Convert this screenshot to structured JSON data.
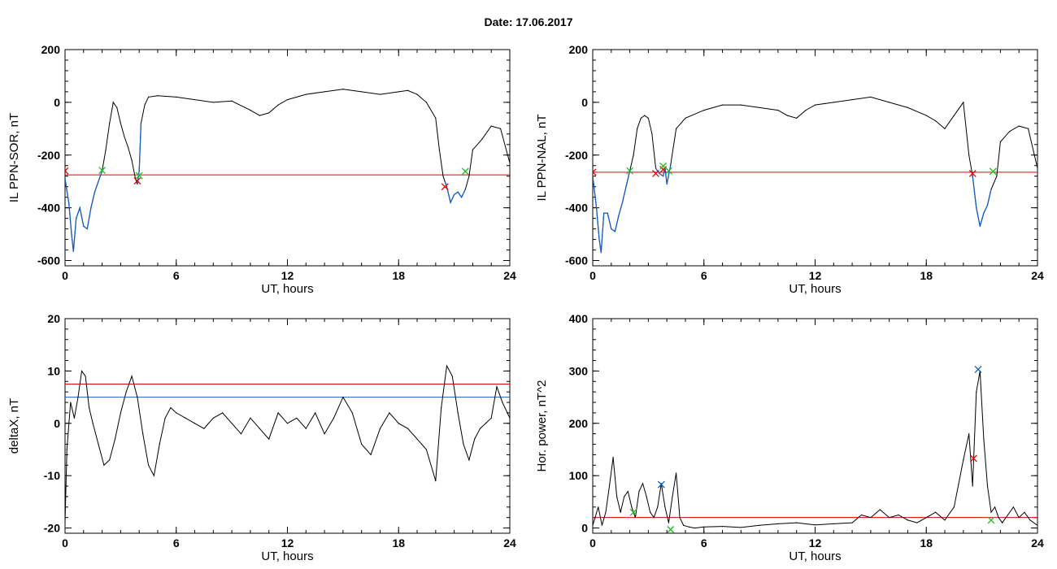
{
  "figure": {
    "title": "Date:  17.06.2017"
  },
  "colors": {
    "series": "#000000",
    "threshold": "#e00000",
    "blue": "#1560bd",
    "green": "#22bb22",
    "red_marker": "#e00000"
  },
  "chart_data": [
    {
      "type": "line",
      "xlabel": "UT, hours",
      "ylabel": "IL PPN-SOR, nT",
      "xlim": [
        0,
        24
      ],
      "ylim": [
        -620,
        200
      ],
      "xticks": [
        "0",
        "6",
        "12",
        "18",
        "24"
      ],
      "yticks": [
        "200",
        "0",
        "-200",
        "-400",
        "-600"
      ],
      "ytick_values": [
        200,
        0,
        -200,
        -400,
        -600
      ],
      "series": [
        {
          "x": [
            0,
            0.2,
            0.35,
            0.45,
            0.6,
            0.8,
            1.0,
            1.2,
            1.4,
            1.6,
            1.8,
            2.0,
            2.2,
            2.4,
            2.6,
            2.8,
            3.0,
            3.2,
            3.4,
            3.6,
            3.8,
            3.9,
            4.0,
            4.1,
            4.3,
            4.5,
            5,
            6,
            7,
            8,
            9,
            10,
            10.5,
            11,
            11.5,
            12,
            13,
            14,
            15,
            16,
            17,
            18,
            18.5,
            19,
            19.5,
            20,
            20.2,
            20.4,
            20.5,
            20.6,
            20.8,
            21.0,
            21.2,
            21.4,
            21.6,
            21.8,
            22,
            22.5,
            23,
            23.5,
            24
          ],
          "values": [
            -290,
            -380,
            -500,
            -565,
            -440,
            -400,
            -470,
            -480,
            -400,
            -340,
            -300,
            -260,
            -180,
            -80,
            0,
            -20,
            -80,
            -130,
            -170,
            -220,
            -290,
            -310,
            -260,
            -80,
            -10,
            20,
            25,
            20,
            10,
            0,
            5,
            -30,
            -50,
            -40,
            -10,
            10,
            30,
            40,
            50,
            40,
            30,
            40,
            45,
            30,
            0,
            -60,
            -180,
            -280,
            -300,
            -320,
            -380,
            -350,
            -340,
            -360,
            -330,
            -280,
            -180,
            -140,
            -90,
            -100,
            -230
          ],
          "highlight_x_ranges": [
            [
              0,
              2.1
            ],
            [
              3.9,
              4.15
            ],
            [
              20.5,
              21.6
            ]
          ]
        }
      ],
      "threshold": -275,
      "markers_red": [
        {
          "x": 0,
          "y": -260
        },
        {
          "x": 3.9,
          "y": -298
        },
        {
          "x": 20.5,
          "y": -320
        }
      ],
      "markers_green": [
        {
          "x": 2.0,
          "y": -258
        },
        {
          "x": 4.0,
          "y": -278
        },
        {
          "x": 21.6,
          "y": -262
        }
      ]
    },
    {
      "type": "line",
      "xlabel": "UT, hours",
      "ylabel": "IL PPN-NAL, nT",
      "xlim": [
        0,
        24
      ],
      "ylim": [
        -620,
        200
      ],
      "xticks": [
        "0",
        "6",
        "12",
        "18",
        "24"
      ],
      "yticks": [
        "200",
        "0",
        "-200",
        "-400",
        "-600"
      ],
      "ytick_values": [
        200,
        0,
        -200,
        -400,
        -600
      ],
      "series": [
        {
          "x": [
            0,
            0.2,
            0.35,
            0.45,
            0.6,
            0.8,
            1.0,
            1.2,
            1.4,
            1.6,
            1.8,
            2.0,
            2.2,
            2.4,
            2.6,
            2.8,
            3.0,
            3.2,
            3.4,
            3.6,
            3.8,
            3.9,
            4.0,
            4.2,
            4.5,
            5,
            6,
            7,
            8,
            9,
            10,
            10.5,
            11,
            11.5,
            12,
            13,
            14,
            15,
            16,
            17,
            18,
            18.5,
            19,
            19.5,
            20,
            20.3,
            20.5,
            20.7,
            20.9,
            21.1,
            21.3,
            21.5,
            21.8,
            22,
            22.5,
            23,
            23.5,
            24
          ],
          "values": [
            -280,
            -400,
            -520,
            -570,
            -420,
            -420,
            -480,
            -490,
            -430,
            -380,
            -320,
            -260,
            -200,
            -100,
            -60,
            -50,
            -60,
            -120,
            -250,
            -270,
            -280,
            -250,
            -310,
            -240,
            -100,
            -60,
            -30,
            -10,
            -10,
            -20,
            -30,
            -50,
            -60,
            -30,
            -10,
            0,
            10,
            20,
            0,
            -20,
            -50,
            -70,
            -100,
            -50,
            0,
            -200,
            -280,
            -400,
            -470,
            -420,
            -390,
            -330,
            -280,
            -150,
            -110,
            -90,
            -100,
            -250
          ],
          "highlight_x_ranges": [
            [
              0,
              2.1
            ],
            [
              3.3,
              4.2
            ],
            [
              20.5,
              21.6
            ]
          ]
        }
      ],
      "threshold": -265,
      "markers_red": [
        {
          "x": 0,
          "y": -265
        },
        {
          "x": 3.4,
          "y": -270
        },
        {
          "x": 3.8,
          "y": -255
        },
        {
          "x": 20.5,
          "y": -270
        }
      ],
      "markers_green": [
        {
          "x": 2.0,
          "y": -260
        },
        {
          "x": 3.8,
          "y": -242
        },
        {
          "x": 4.1,
          "y": -260
        },
        {
          "x": 21.6,
          "y": -262
        }
      ]
    },
    {
      "type": "line",
      "xlabel": "UT, hours",
      "ylabel": "deltaX, nT",
      "xlim": [
        0,
        24
      ],
      "ylim": [
        -21,
        20
      ],
      "xticks": [
        "0",
        "6",
        "12",
        "18",
        "24"
      ],
      "yticks": [
        "20",
        "10",
        "0",
        "-10",
        "-20"
      ],
      "ytick_values": [
        20,
        10,
        0,
        -10,
        -20
      ],
      "series": [
        {
          "x": [
            0,
            0.1,
            0.3,
            0.5,
            0.7,
            0.9,
            1.1,
            1.3,
            1.5,
            1.8,
            2.1,
            2.4,
            2.7,
            3.0,
            3.3,
            3.6,
            3.9,
            4.2,
            4.5,
            4.8,
            5.1,
            5.4,
            5.7,
            6.0,
            6.5,
            7,
            7.5,
            8,
            8.5,
            9,
            9.5,
            10,
            10.5,
            11,
            11.5,
            12,
            12.5,
            13,
            13.5,
            14,
            14.5,
            15,
            15.5,
            16,
            16.5,
            17,
            17.5,
            18,
            18.5,
            19,
            19.5,
            20,
            20.3,
            20.6,
            20.9,
            21.2,
            21.5,
            21.8,
            22.1,
            22.4,
            22.7,
            23.0,
            23.3,
            23.6,
            24
          ],
          "values": [
            -19,
            -5,
            4,
            1,
            5,
            10,
            9,
            3,
            0,
            -4,
            -8,
            -7,
            -3,
            2,
            6,
            9,
            5,
            -2,
            -8,
            -10,
            -4,
            1,
            3,
            2,
            1,
            0,
            -1,
            1,
            2,
            0,
            -2,
            1,
            -1,
            -3,
            2,
            0,
            1,
            -1,
            2,
            -2,
            1,
            5,
            2,
            -4,
            -6,
            -1,
            2,
            0,
            -1,
            -3,
            -5,
            -11,
            3,
            11,
            9,
            2,
            -4,
            -7,
            -3,
            -1,
            0,
            1,
            7,
            4,
            1
          ]
        }
      ],
      "threshold": 7.5,
      "threshold_blue": 5.0
    },
    {
      "type": "line",
      "xlabel": "UT, hours",
      "ylabel": "Hor. power, nT^2",
      "xlim": [
        0,
        24
      ],
      "ylim": [
        -10,
        400
      ],
      "xticks": [
        "0",
        "6",
        "12",
        "18",
        "24"
      ],
      "yticks": [
        "400",
        "300",
        "200",
        "100",
        "0"
      ],
      "ytick_values": [
        400,
        300,
        200,
        100,
        0
      ],
      "series": [
        {
          "x": [
            0,
            0.3,
            0.5,
            0.7,
            0.9,
            1.1,
            1.3,
            1.5,
            1.7,
            1.9,
            2.1,
            2.3,
            2.5,
            2.7,
            2.9,
            3.1,
            3.3,
            3.5,
            3.7,
            3.9,
            4.1,
            4.3,
            4.5,
            4.7,
            4.9,
            5.2,
            5.5,
            6,
            7,
            8,
            9,
            10,
            11,
            12,
            13,
            14,
            14.5,
            15,
            15.5,
            16,
            16.5,
            17,
            17.5,
            18,
            18.5,
            19,
            19.5,
            20,
            20.3,
            20.5,
            20.7,
            20.9,
            21.1,
            21.3,
            21.5,
            21.7,
            21.9,
            22.1,
            22.4,
            22.7,
            23.0,
            23.3,
            23.6,
            24
          ],
          "values": [
            5,
            40,
            5,
            30,
            80,
            135,
            60,
            30,
            60,
            70,
            40,
            20,
            70,
            85,
            60,
            30,
            20,
            40,
            85,
            40,
            10,
            60,
            105,
            20,
            5,
            2,
            0,
            2,
            3,
            1,
            5,
            8,
            10,
            6,
            8,
            10,
            25,
            20,
            35,
            20,
            25,
            15,
            10,
            20,
            30,
            15,
            40,
            130,
            180,
            80,
            260,
            300,
            170,
            80,
            30,
            40,
            20,
            10,
            25,
            40,
            20,
            30,
            15,
            5
          ],
          "fill": false
        }
      ],
      "threshold": 20,
      "markers_red": [
        {
          "x": 20.55,
          "y": 133
        }
      ],
      "markers_blue": [
        {
          "x": 3.7,
          "y": 83
        },
        {
          "x": 20.8,
          "y": 303
        }
      ],
      "markers_green": [
        {
          "x": 2.2,
          "y": 30
        },
        {
          "x": 4.2,
          "y": -3
        },
        {
          "x": 21.5,
          "y": 15
        }
      ]
    }
  ]
}
